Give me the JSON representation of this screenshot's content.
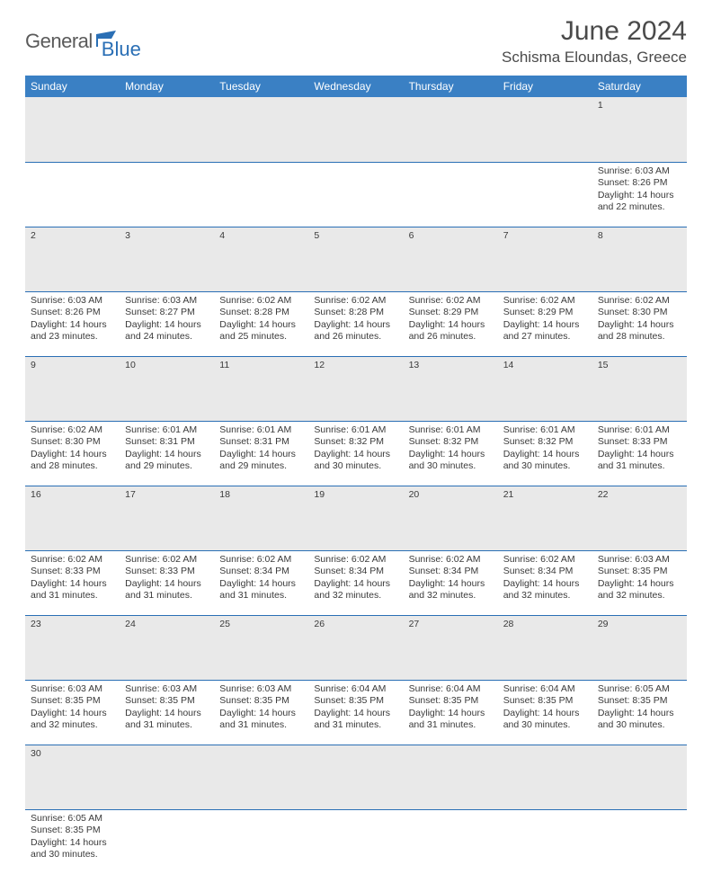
{
  "logo": {
    "text1": "General",
    "text2": "Blue"
  },
  "title": "June 2024",
  "location": "Schisma Eloundas, Greece",
  "colors": {
    "header_bg": "#3a80c4",
    "header_text": "#ffffff",
    "daynum_bg": "#e9e9e9",
    "border": "#2a6fb5",
    "text": "#3a3a3a",
    "logo_gray": "#5a5a5a",
    "logo_blue": "#2a6fb5",
    "background": "#ffffff"
  },
  "typography": {
    "title_fontsize": 30,
    "location_fontsize": 17,
    "header_fontsize": 12,
    "cell_fontsize": 10.5,
    "daynum_fontsize": 12
  },
  "weekdays": [
    "Sunday",
    "Monday",
    "Tuesday",
    "Wednesday",
    "Thursday",
    "Friday",
    "Saturday"
  ],
  "weeks": [
    [
      null,
      null,
      null,
      null,
      null,
      null,
      {
        "n": "1",
        "sunrise": "Sunrise: 6:03 AM",
        "sunset": "Sunset: 8:26 PM",
        "d1": "Daylight: 14 hours",
        "d2": "and 22 minutes."
      }
    ],
    [
      {
        "n": "2",
        "sunrise": "Sunrise: 6:03 AM",
        "sunset": "Sunset: 8:26 PM",
        "d1": "Daylight: 14 hours",
        "d2": "and 23 minutes."
      },
      {
        "n": "3",
        "sunrise": "Sunrise: 6:03 AM",
        "sunset": "Sunset: 8:27 PM",
        "d1": "Daylight: 14 hours",
        "d2": "and 24 minutes."
      },
      {
        "n": "4",
        "sunrise": "Sunrise: 6:02 AM",
        "sunset": "Sunset: 8:28 PM",
        "d1": "Daylight: 14 hours",
        "d2": "and 25 minutes."
      },
      {
        "n": "5",
        "sunrise": "Sunrise: 6:02 AM",
        "sunset": "Sunset: 8:28 PM",
        "d1": "Daylight: 14 hours",
        "d2": "and 26 minutes."
      },
      {
        "n": "6",
        "sunrise": "Sunrise: 6:02 AM",
        "sunset": "Sunset: 8:29 PM",
        "d1": "Daylight: 14 hours",
        "d2": "and 26 minutes."
      },
      {
        "n": "7",
        "sunrise": "Sunrise: 6:02 AM",
        "sunset": "Sunset: 8:29 PM",
        "d1": "Daylight: 14 hours",
        "d2": "and 27 minutes."
      },
      {
        "n": "8",
        "sunrise": "Sunrise: 6:02 AM",
        "sunset": "Sunset: 8:30 PM",
        "d1": "Daylight: 14 hours",
        "d2": "and 28 minutes."
      }
    ],
    [
      {
        "n": "9",
        "sunrise": "Sunrise: 6:02 AM",
        "sunset": "Sunset: 8:30 PM",
        "d1": "Daylight: 14 hours",
        "d2": "and 28 minutes."
      },
      {
        "n": "10",
        "sunrise": "Sunrise: 6:01 AM",
        "sunset": "Sunset: 8:31 PM",
        "d1": "Daylight: 14 hours",
        "d2": "and 29 minutes."
      },
      {
        "n": "11",
        "sunrise": "Sunrise: 6:01 AM",
        "sunset": "Sunset: 8:31 PM",
        "d1": "Daylight: 14 hours",
        "d2": "and 29 minutes."
      },
      {
        "n": "12",
        "sunrise": "Sunrise: 6:01 AM",
        "sunset": "Sunset: 8:32 PM",
        "d1": "Daylight: 14 hours",
        "d2": "and 30 minutes."
      },
      {
        "n": "13",
        "sunrise": "Sunrise: 6:01 AM",
        "sunset": "Sunset: 8:32 PM",
        "d1": "Daylight: 14 hours",
        "d2": "and 30 minutes."
      },
      {
        "n": "14",
        "sunrise": "Sunrise: 6:01 AM",
        "sunset": "Sunset: 8:32 PM",
        "d1": "Daylight: 14 hours",
        "d2": "and 30 minutes."
      },
      {
        "n": "15",
        "sunrise": "Sunrise: 6:01 AM",
        "sunset": "Sunset: 8:33 PM",
        "d1": "Daylight: 14 hours",
        "d2": "and 31 minutes."
      }
    ],
    [
      {
        "n": "16",
        "sunrise": "Sunrise: 6:02 AM",
        "sunset": "Sunset: 8:33 PM",
        "d1": "Daylight: 14 hours",
        "d2": "and 31 minutes."
      },
      {
        "n": "17",
        "sunrise": "Sunrise: 6:02 AM",
        "sunset": "Sunset: 8:33 PM",
        "d1": "Daylight: 14 hours",
        "d2": "and 31 minutes."
      },
      {
        "n": "18",
        "sunrise": "Sunrise: 6:02 AM",
        "sunset": "Sunset: 8:34 PM",
        "d1": "Daylight: 14 hours",
        "d2": "and 31 minutes."
      },
      {
        "n": "19",
        "sunrise": "Sunrise: 6:02 AM",
        "sunset": "Sunset: 8:34 PM",
        "d1": "Daylight: 14 hours",
        "d2": "and 32 minutes."
      },
      {
        "n": "20",
        "sunrise": "Sunrise: 6:02 AM",
        "sunset": "Sunset: 8:34 PM",
        "d1": "Daylight: 14 hours",
        "d2": "and 32 minutes."
      },
      {
        "n": "21",
        "sunrise": "Sunrise: 6:02 AM",
        "sunset": "Sunset: 8:34 PM",
        "d1": "Daylight: 14 hours",
        "d2": "and 32 minutes."
      },
      {
        "n": "22",
        "sunrise": "Sunrise: 6:03 AM",
        "sunset": "Sunset: 8:35 PM",
        "d1": "Daylight: 14 hours",
        "d2": "and 32 minutes."
      }
    ],
    [
      {
        "n": "23",
        "sunrise": "Sunrise: 6:03 AM",
        "sunset": "Sunset: 8:35 PM",
        "d1": "Daylight: 14 hours",
        "d2": "and 32 minutes."
      },
      {
        "n": "24",
        "sunrise": "Sunrise: 6:03 AM",
        "sunset": "Sunset: 8:35 PM",
        "d1": "Daylight: 14 hours",
        "d2": "and 31 minutes."
      },
      {
        "n": "25",
        "sunrise": "Sunrise: 6:03 AM",
        "sunset": "Sunset: 8:35 PM",
        "d1": "Daylight: 14 hours",
        "d2": "and 31 minutes."
      },
      {
        "n": "26",
        "sunrise": "Sunrise: 6:04 AM",
        "sunset": "Sunset: 8:35 PM",
        "d1": "Daylight: 14 hours",
        "d2": "and 31 minutes."
      },
      {
        "n": "27",
        "sunrise": "Sunrise: 6:04 AM",
        "sunset": "Sunset: 8:35 PM",
        "d1": "Daylight: 14 hours",
        "d2": "and 31 minutes."
      },
      {
        "n": "28",
        "sunrise": "Sunrise: 6:04 AM",
        "sunset": "Sunset: 8:35 PM",
        "d1": "Daylight: 14 hours",
        "d2": "and 30 minutes."
      },
      {
        "n": "29",
        "sunrise": "Sunrise: 6:05 AM",
        "sunset": "Sunset: 8:35 PM",
        "d1": "Daylight: 14 hours",
        "d2": "and 30 minutes."
      }
    ],
    [
      {
        "n": "30",
        "sunrise": "Sunrise: 6:05 AM",
        "sunset": "Sunset: 8:35 PM",
        "d1": "Daylight: 14 hours",
        "d2": "and 30 minutes."
      },
      null,
      null,
      null,
      null,
      null,
      null
    ]
  ]
}
